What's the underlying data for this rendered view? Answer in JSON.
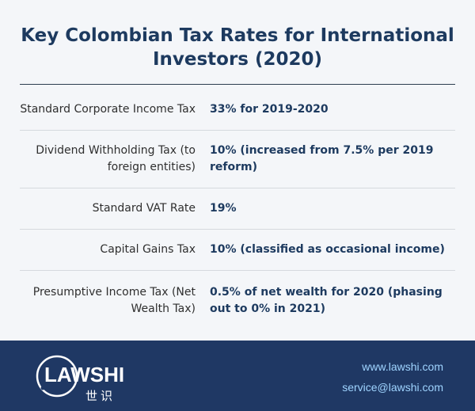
{
  "title": "Key Colombian Tax Rates for International Investors (2020)",
  "rows": [
    {
      "label": "Standard Corporate Income Tax",
      "value": "33% for 2019-2020"
    },
    {
      "label": "Dividend Withholding Tax (to foreign entities)",
      "value": "10% (increased from 7.5% per 2019 reform)"
    },
    {
      "label": "Standard VAT Rate",
      "value": "19%"
    },
    {
      "label": "Capital Gains Tax",
      "value": "10% (classified as occasional income)"
    },
    {
      "label": "Presumptive Income Tax (Net Wealth Tax)",
      "value": "0.5% of net wealth for 2020 (phasing out to 0% in 2021)"
    }
  ],
  "footer": {
    "logo_text": "LAWSHI",
    "logo_subtext": "世识",
    "website": "www.lawshi.com",
    "email": "service@lawshi.com"
  }
}
